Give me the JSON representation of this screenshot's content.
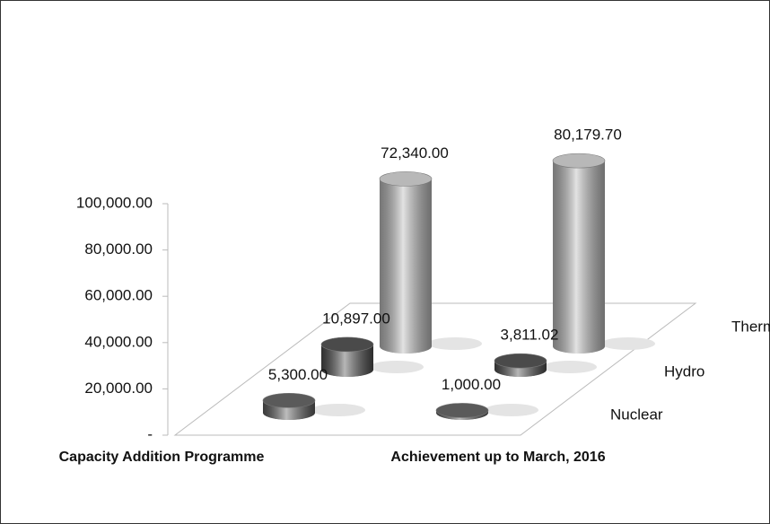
{
  "chart_data": {
    "type": "bar",
    "categories": [
      "Capacity Addition Programme",
      "Achievement up to March, 2016"
    ],
    "series": [
      {
        "name": "Nuclear",
        "color": "#5a5a5a",
        "values": [
          5300,
          1000
        ],
        "value_labels": [
          "5,300.00",
          "1,000.00"
        ]
      },
      {
        "name": "Hydro",
        "color": "#4a4a4a",
        "values": [
          10897,
          3811.02
        ],
        "value_labels": [
          "10,897.00",
          "3,811.02"
        ]
      },
      {
        "name": "Thermal",
        "color": "#b8b8b8",
        "values": [
          72340,
          80179.7
        ],
        "value_labels": [
          "72,340.00",
          "80,179.70"
        ]
      }
    ],
    "ylim": [
      0,
      100000
    ],
    "yticks": [
      {
        "value": 0,
        "label": "-"
      },
      {
        "value": 20000,
        "label": "20,000.00"
      },
      {
        "value": 40000,
        "label": "40,000.00"
      },
      {
        "value": 60000,
        "label": "60,000.00"
      },
      {
        "value": 80000,
        "label": "80,000.00"
      },
      {
        "value": 100000,
        "label": "100,000.00"
      }
    ]
  }
}
